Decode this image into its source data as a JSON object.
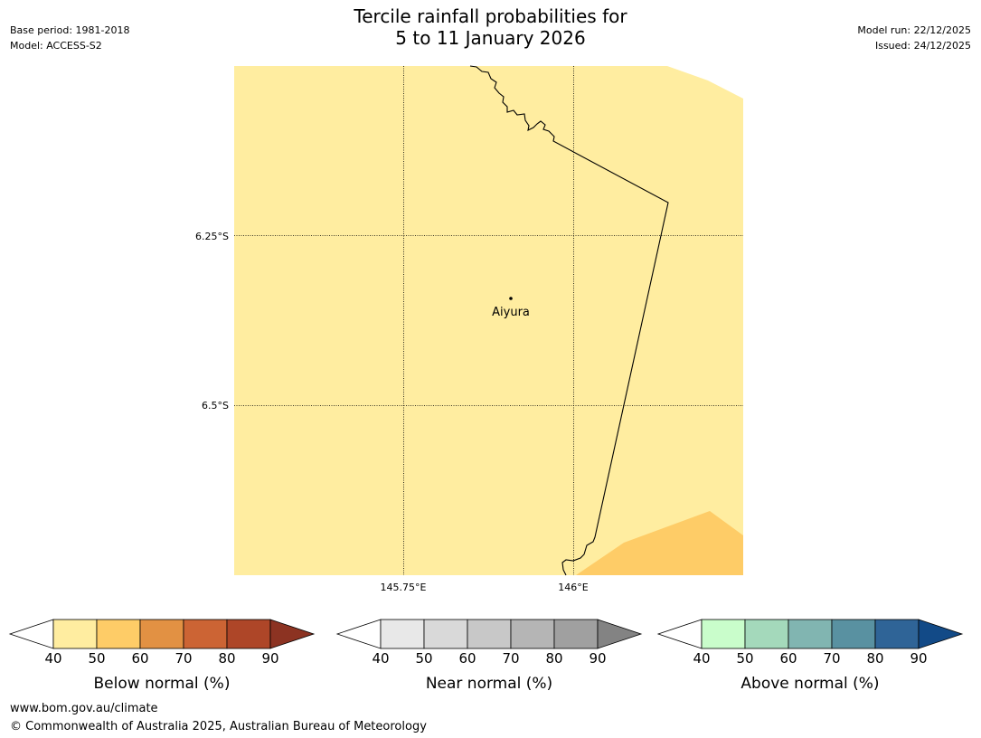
{
  "header": {
    "title_line1": "Tercile rainfall probabilities for",
    "title_line2": "5 to 11 January 2026",
    "base_period": "Base period: 1981-2018",
    "model": "Model: ACCESS-S2",
    "model_run": "Model run: 22/12/2025",
    "issued": "Issued: 24/12/2025"
  },
  "map": {
    "lat_labels": [
      "6.25°S",
      "6.5°S"
    ],
    "lon_labels": [
      "145.75°E",
      "146°E"
    ],
    "place": {
      "name": "Aiyura"
    },
    "colors": {
      "land_fill": "#ffeda0",
      "higher_prob_fill": "#fecc67",
      "border_line": "#000000",
      "gridline": "#000000"
    }
  },
  "colorbars": [
    {
      "label": "Below normal (%)",
      "ticks": [
        "40",
        "50",
        "60",
        "70",
        "80",
        "90"
      ],
      "colors": [
        "#ffeda0",
        "#fecc67",
        "#e29143",
        "#cc6434",
        "#ae4628"
      ],
      "over_color": "#8c3322"
    },
    {
      "label": "Near normal (%)",
      "ticks": [
        "40",
        "50",
        "60",
        "70",
        "80",
        "90"
      ],
      "colors": [
        "#e8e8e8",
        "#d9d9d9",
        "#c8c8c8",
        "#b5b5b5",
        "#a0a0a0"
      ],
      "over_color": "#838383"
    },
    {
      "label": "Above normal (%)",
      "ticks": [
        "40",
        "50",
        "60",
        "70",
        "80",
        "90"
      ],
      "colors": [
        "#c9fdcb",
        "#a4d9bb",
        "#81b5b1",
        "#5991a1",
        "#2f6497"
      ],
      "over_color": "#124a87"
    }
  ],
  "footer": {
    "website": "www.bom.gov.au/climate",
    "copyright": "© Commonwealth of Australia 2025, Australian Bureau of Meteorology"
  }
}
